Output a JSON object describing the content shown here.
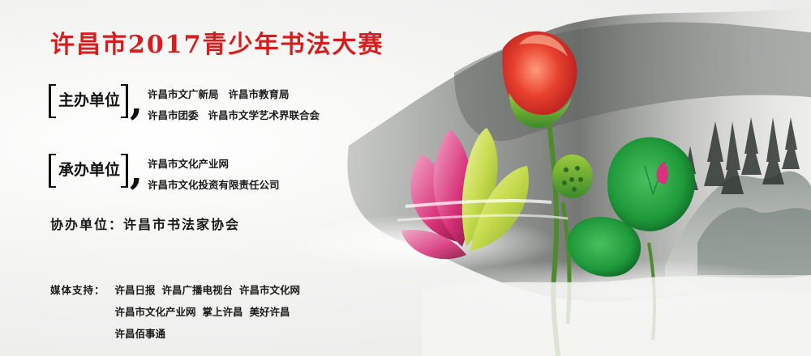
{
  "title": "许昌市2017青少年书法大赛",
  "host": {
    "label": "主办单位",
    "lines": [
      [
        "许昌市文广新局",
        "许昌市教育局"
      ],
      [
        "许昌市团委",
        "许昌市文学艺术界联合会"
      ]
    ]
  },
  "undertake": {
    "label": "承办单位",
    "lines": [
      [
        "许昌市文化产业网"
      ],
      [
        "许昌市文化投资有限责任公司"
      ]
    ]
  },
  "co_organizer": "协办单位：许昌市书法家协会",
  "media": {
    "label": "媒体支持：",
    "lines": [
      [
        "许昌日报",
        "许昌广播电视台",
        "许昌市文化网"
      ],
      [
        "许昌市文化产业网",
        "掌上许昌",
        "美好许昌"
      ],
      [
        "许昌佰事通"
      ]
    ]
  },
  "colors": {
    "title": "#d51f1f",
    "text": "#1a1a1a",
    "ink": "#3a3d3a",
    "lotus_red": "#e33a2a",
    "lotus_pink": "#d8337a",
    "lotus_green": "#b8d43a",
    "leaf": "#1f9a3a"
  }
}
